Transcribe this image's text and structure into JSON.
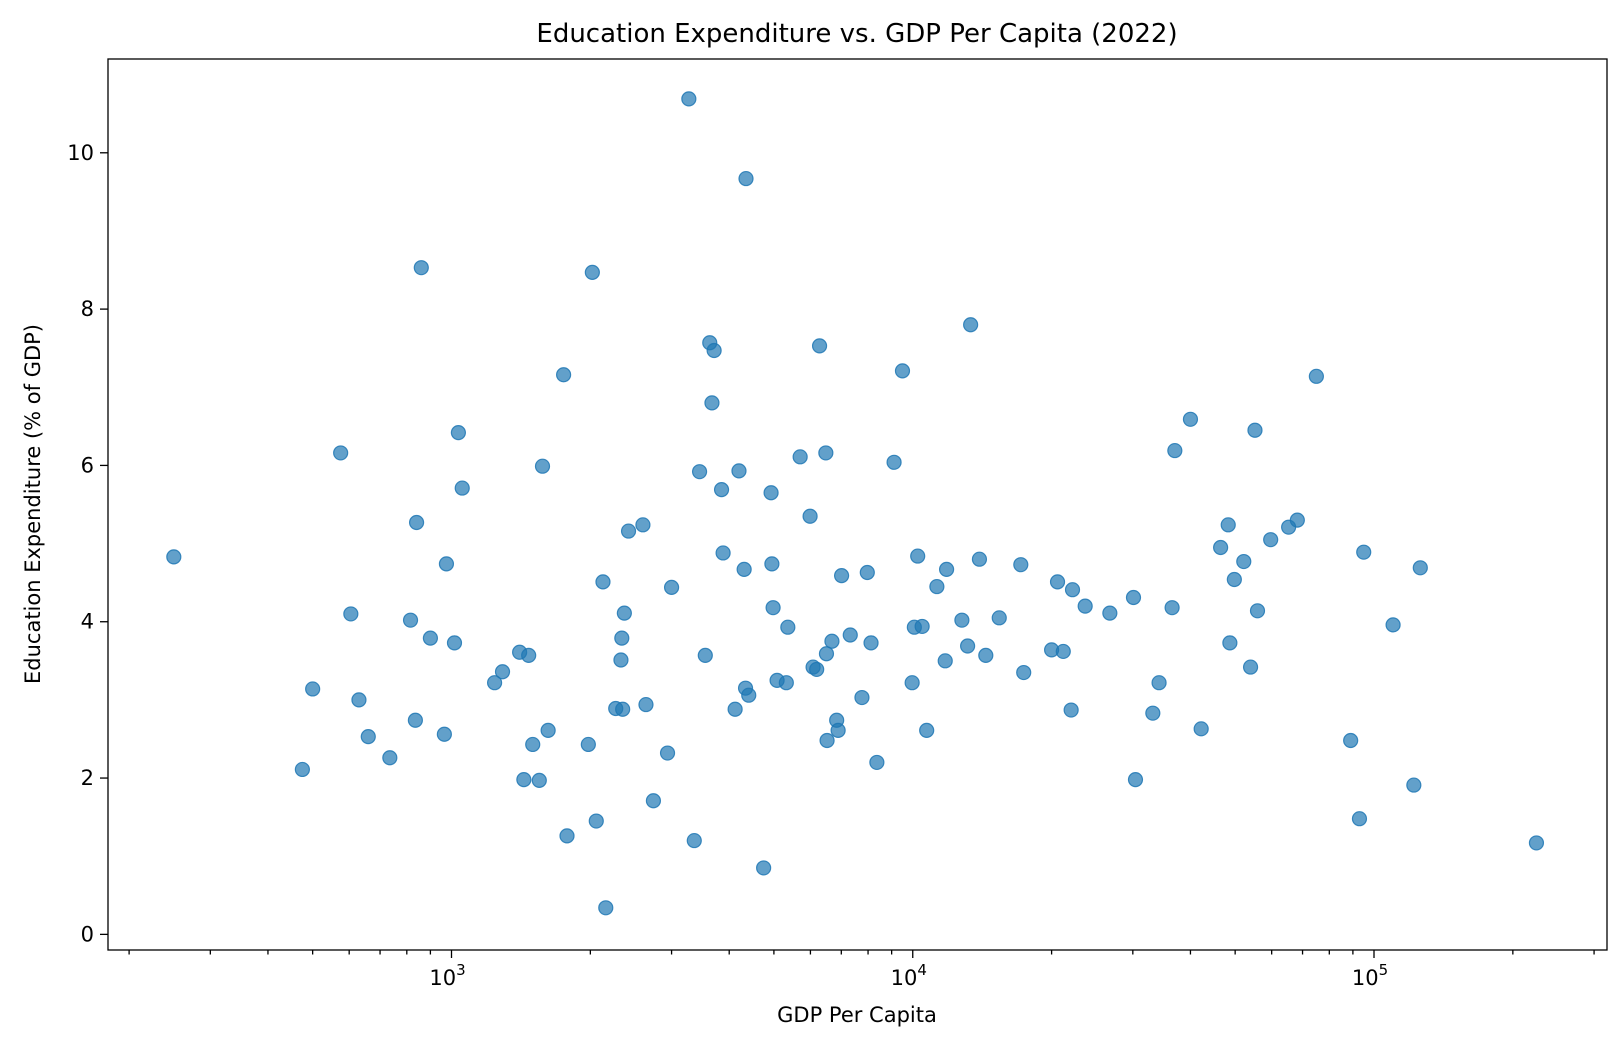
{
  "chart_data": {
    "type": "scatter",
    "title": "Education Expenditure vs. GDP Per Capita (2022)",
    "xlabel": "GDP Per Capita",
    "ylabel": "Education Expenditure (% of GDP)",
    "xscale": "log",
    "xlim": [
      180,
      320000
    ],
    "ylim": [
      -0.2,
      11.2
    ],
    "xticks": [
      {
        "value": 1000,
        "base": "10",
        "exp": "3"
      },
      {
        "value": 10000,
        "base": "10",
        "exp": "4"
      },
      {
        "value": 100000,
        "base": "10",
        "exp": "5"
      }
    ],
    "yticks": [
      0,
      2,
      4,
      6,
      8,
      10
    ],
    "grid": false,
    "legend": "none",
    "color": "#1f77b4",
    "series": [
      {
        "points": [
          [
            250,
            4.83
          ],
          [
            475,
            2.11
          ],
          [
            500,
            3.14
          ],
          [
            575,
            6.16
          ],
          [
            605,
            4.1
          ],
          [
            630,
            3.0
          ],
          [
            660,
            2.53
          ],
          [
            735,
            2.26
          ],
          [
            815,
            4.02
          ],
          [
            835,
            2.74
          ],
          [
            840,
            5.27
          ],
          [
            860,
            8.53
          ],
          [
            900,
            3.79
          ],
          [
            965,
            2.56
          ],
          [
            975,
            4.74
          ],
          [
            1015,
            3.73
          ],
          [
            1035,
            6.42
          ],
          [
            1055,
            5.71
          ],
          [
            1240,
            3.22
          ],
          [
            1290,
            3.36
          ],
          [
            1405,
            3.61
          ],
          [
            1435,
            1.98
          ],
          [
            1470,
            3.57
          ],
          [
            1500,
            2.43
          ],
          [
            1550,
            1.97
          ],
          [
            1575,
            5.99
          ],
          [
            1620,
            2.61
          ],
          [
            1780,
            1.26
          ],
          [
            1750,
            7.16
          ],
          [
            1980,
            2.43
          ],
          [
            2020,
            8.47
          ],
          [
            2060,
            1.45
          ],
          [
            2130,
            4.51
          ],
          [
            2160,
            0.34
          ],
          [
            2270,
            2.89
          ],
          [
            2330,
            3.51
          ],
          [
            2340,
            3.79
          ],
          [
            2350,
            2.88
          ],
          [
            2370,
            4.11
          ],
          [
            2420,
            5.16
          ],
          [
            2600,
            5.24
          ],
          [
            2640,
            2.94
          ],
          [
            2740,
            1.71
          ],
          [
            2940,
            2.32
          ],
          [
            3000,
            4.44
          ],
          [
            3270,
            10.69
          ],
          [
            3360,
            1.2
          ],
          [
            3450,
            5.92
          ],
          [
            3550,
            3.57
          ],
          [
            3630,
            7.57
          ],
          [
            3670,
            6.8
          ],
          [
            3710,
            7.47
          ],
          [
            3850,
            5.69
          ],
          [
            3880,
            4.88
          ],
          [
            4120,
            2.88
          ],
          [
            4200,
            5.93
          ],
          [
            4310,
            4.67
          ],
          [
            4340,
            3.15
          ],
          [
            4350,
            9.67
          ],
          [
            4410,
            3.06
          ],
          [
            4750,
            0.85
          ],
          [
            4930,
            5.65
          ],
          [
            4950,
            4.74
          ],
          [
            4980,
            4.18
          ],
          [
            5080,
            3.25
          ],
          [
            5320,
            3.22
          ],
          [
            5360,
            3.93
          ],
          [
            5700,
            6.11
          ],
          [
            5990,
            5.35
          ],
          [
            6080,
            3.42
          ],
          [
            6190,
            3.39
          ],
          [
            6280,
            7.53
          ],
          [
            6480,
            6.16
          ],
          [
            6500,
            3.59
          ],
          [
            6520,
            2.48
          ],
          [
            6680,
            3.75
          ],
          [
            6840,
            2.74
          ],
          [
            6890,
            2.61
          ],
          [
            7010,
            4.59
          ],
          [
            7320,
            3.83
          ],
          [
            7760,
            3.03
          ],
          [
            7970,
            4.63
          ],
          [
            8120,
            3.73
          ],
          [
            8360,
            2.2
          ],
          [
            9110,
            6.04
          ],
          [
            9500,
            7.21
          ],
          [
            9970,
            3.22
          ],
          [
            10080,
            3.93
          ],
          [
            10250,
            4.84
          ],
          [
            10480,
            3.94
          ],
          [
            10720,
            2.61
          ],
          [
            11280,
            4.45
          ],
          [
            11760,
            3.5
          ],
          [
            11840,
            4.67
          ],
          [
            12780,
            4.02
          ],
          [
            13150,
            3.69
          ],
          [
            13350,
            7.8
          ],
          [
            13950,
            4.8
          ],
          [
            14400,
            3.57
          ],
          [
            15400,
            4.05
          ],
          [
            17150,
            4.73
          ],
          [
            17400,
            3.35
          ],
          [
            20000,
            3.64
          ],
          [
            20600,
            4.51
          ],
          [
            21200,
            3.62
          ],
          [
            22050,
            2.87
          ],
          [
            22200,
            4.41
          ],
          [
            23650,
            4.2
          ],
          [
            26750,
            4.11
          ],
          [
            30100,
            4.31
          ],
          [
            30400,
            1.98
          ],
          [
            33150,
            2.83
          ],
          [
            34200,
            3.22
          ],
          [
            36500,
            4.18
          ],
          [
            37000,
            6.19
          ],
          [
            40000,
            6.59
          ],
          [
            42200,
            2.63
          ],
          [
            46500,
            4.95
          ],
          [
            48300,
            5.24
          ],
          [
            48700,
            3.73
          ],
          [
            49800,
            4.54
          ],
          [
            52200,
            4.77
          ],
          [
            54000,
            3.42
          ],
          [
            55200,
            6.45
          ],
          [
            55900,
            4.14
          ],
          [
            59700,
            5.05
          ],
          [
            65300,
            5.21
          ],
          [
            68200,
            5.3
          ],
          [
            75000,
            7.14
          ],
          [
            89000,
            2.48
          ],
          [
            93000,
            1.48
          ],
          [
            95000,
            4.89
          ],
          [
            110000,
            3.96
          ],
          [
            122000,
            1.91
          ],
          [
            126000,
            4.69
          ],
          [
            225000,
            1.17
          ]
        ]
      }
    ]
  }
}
